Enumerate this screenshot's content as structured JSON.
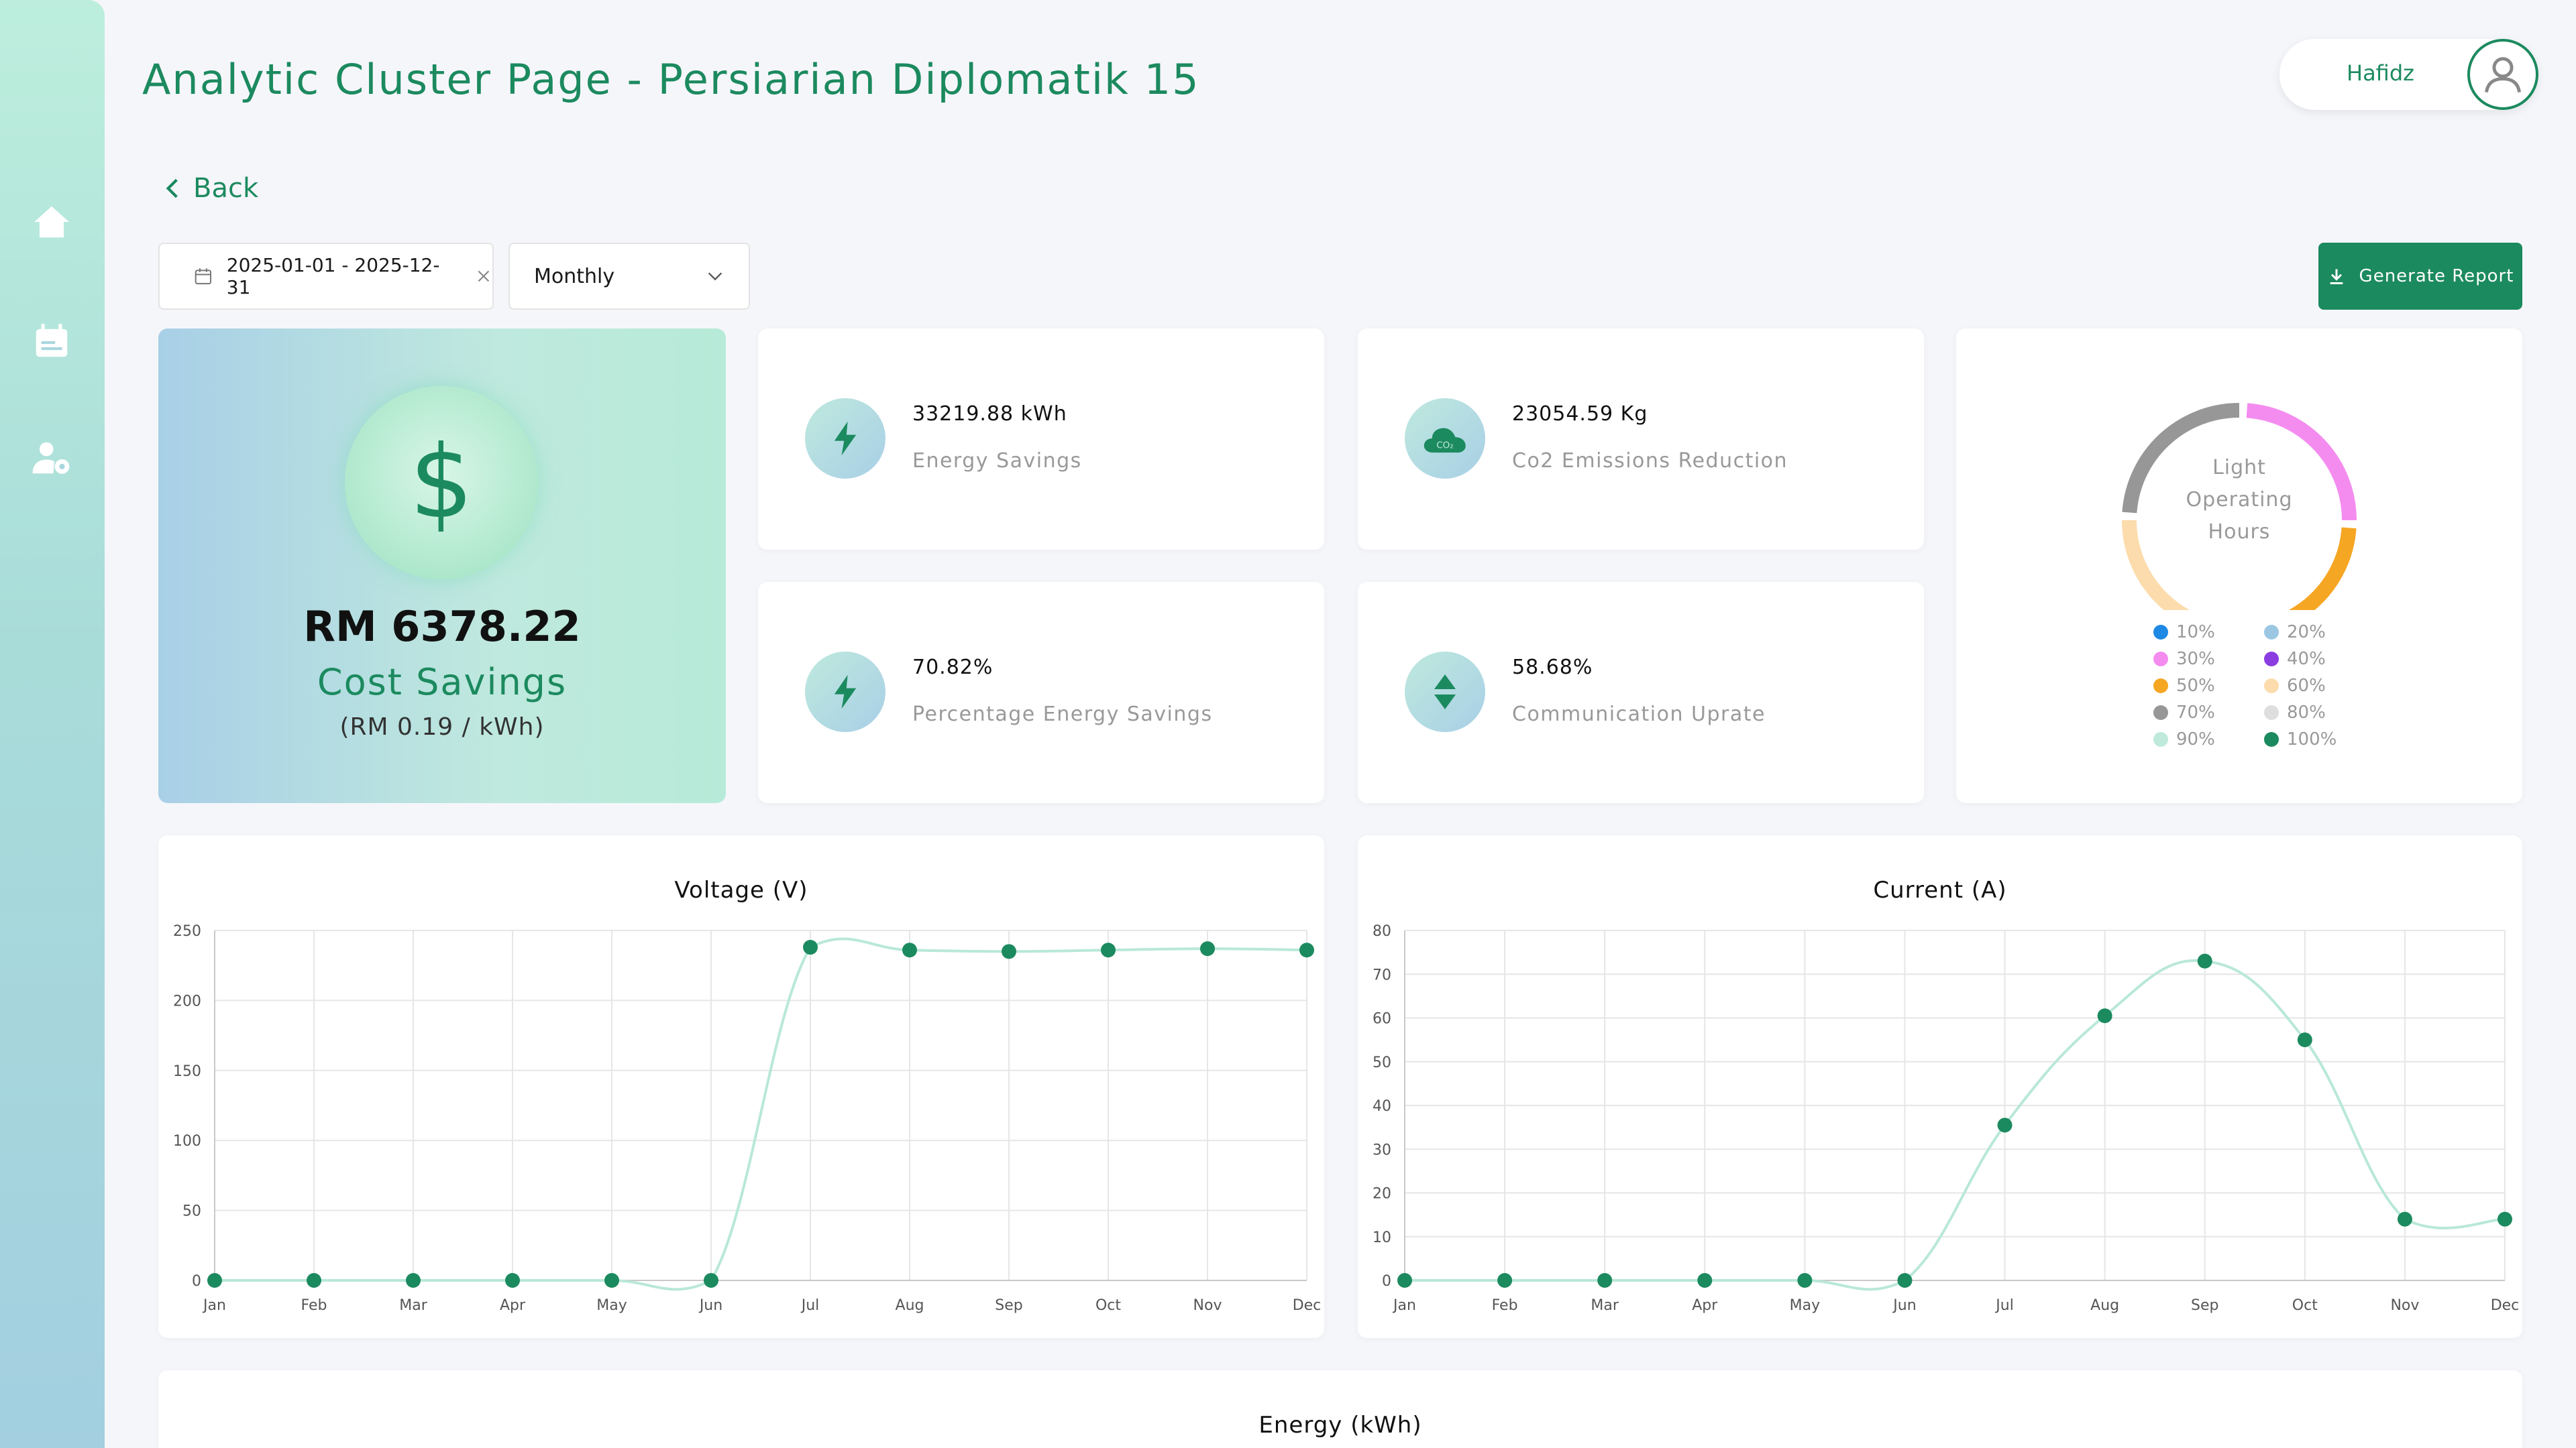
{
  "page": {
    "title": "Analytic Cluster Page - Persiarian Diplomatik 15"
  },
  "sidebar": {
    "items": [
      {
        "name": "home",
        "icon": "home-icon"
      },
      {
        "name": "calendar",
        "icon": "calendar-icon"
      },
      {
        "name": "user-settings",
        "icon": "user-gear-icon"
      }
    ]
  },
  "user": {
    "name": "Hafidz",
    "icon": "user-icon"
  },
  "nav": {
    "back_label": "Back"
  },
  "filters": {
    "date_range": "2025-01-01 - 2025-12-31",
    "period": "Monthly",
    "generate_label": "Generate Report"
  },
  "cost": {
    "value": "RM 6378.22",
    "label": "Cost Savings",
    "rate": "(RM 0.19 / kWh)"
  },
  "stats": {
    "energy": {
      "value": "33219.88 kWh",
      "label": "Energy Savings",
      "icon": "bolt-icon"
    },
    "co2": {
      "value": "23054.59 Kg",
      "label": "Co2 Emissions Reduction",
      "icon": "co2-cloud-icon"
    },
    "pct_energy": {
      "value": "70.82%",
      "label": "Percentage Energy Savings",
      "icon": "bolt-icon"
    },
    "comm": {
      "value": "58.68%",
      "label": "Communication Uprate",
      "icon": "up-down-arrows-icon"
    }
  },
  "donut": {
    "title_lines": [
      "Light",
      "Operating",
      "Hours"
    ],
    "legend": [
      {
        "label": "10%",
        "color": "#1e88e5"
      },
      {
        "label": "20%",
        "color": "#9cc7e3"
      },
      {
        "label": "30%",
        "color": "#f48cf0"
      },
      {
        "label": "40%",
        "color": "#8a3ee0"
      },
      {
        "label": "50%",
        "color": "#f5a623"
      },
      {
        "label": "60%",
        "color": "#fcdcac"
      },
      {
        "label": "70%",
        "color": "#979797"
      },
      {
        "label": "80%",
        "color": "#dedede"
      },
      {
        "label": "90%",
        "color": "#bfeadb"
      },
      {
        "label": "100%",
        "color": "#1c8a5f"
      }
    ],
    "segments": [
      {
        "label": "30%",
        "color": "#f48cf0",
        "value": 25
      },
      {
        "label": "50%",
        "color": "#f5a623",
        "value": 25
      },
      {
        "label": "60%",
        "color": "#fcdcac",
        "value": 25
      },
      {
        "label": "70%",
        "color": "#979797",
        "value": 25
      }
    ]
  },
  "chart_data": [
    {
      "type": "line",
      "title": "Voltage (V)",
      "categories": [
        "Jan",
        "Feb",
        "Mar",
        "Apr",
        "May",
        "Jun",
        "Jul",
        "Aug",
        "Sep",
        "Oct",
        "Nov",
        "Dec"
      ],
      "values": [
        0,
        0,
        0,
        0,
        0,
        0,
        238,
        236,
        235,
        236,
        237,
        236
      ],
      "ylim": [
        0,
        250
      ],
      "yticks": [
        0,
        50,
        100,
        150,
        200,
        250
      ],
      "grid": true,
      "color": "#1c8a5f",
      "line_color": "#b9e8d8"
    },
    {
      "type": "line",
      "title": "Current (A)",
      "categories": [
        "Jan",
        "Feb",
        "Mar",
        "Apr",
        "May",
        "Jun",
        "Jul",
        "Aug",
        "Sep",
        "Oct",
        "Nov",
        "Dec"
      ],
      "values": [
        0,
        0,
        0,
        0,
        0,
        0,
        35.5,
        60.5,
        73,
        55,
        14,
        14
      ],
      "ylim": [
        0,
        80
      ],
      "yticks": [
        0,
        10,
        20,
        30,
        40,
        50,
        60,
        70,
        80
      ],
      "grid": true,
      "color": "#1c8a5f",
      "line_color": "#b9e8d8"
    }
  ],
  "energy_chart": {
    "title": "Energy (kWh)"
  }
}
